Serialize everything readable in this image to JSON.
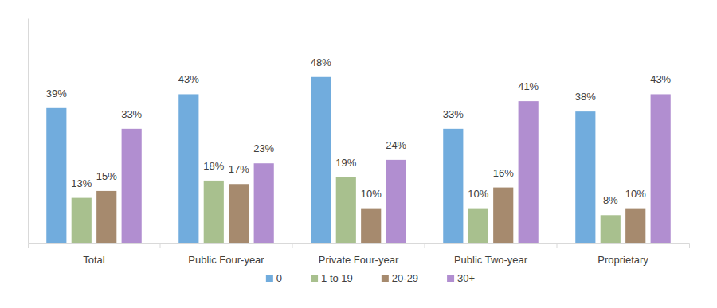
{
  "chart_data": {
    "type": "bar",
    "categories": [
      "Total",
      "Public Four-year",
      "Private Four-year",
      "Public Two-year",
      "Proprietary"
    ],
    "series": [
      {
        "name": "0",
        "color": "#71acdd",
        "values": [
          39,
          43,
          48,
          33,
          38
        ],
        "value_labels": [
          "39%",
          "43%",
          "48%",
          "33%",
          "38%"
        ]
      },
      {
        "name": "1 to 19",
        "color": "#a8c08e",
        "values": [
          13,
          18,
          19,
          10,
          8
        ],
        "value_labels": [
          "13%",
          "18%",
          "19%",
          "10%",
          "8%"
        ]
      },
      {
        "name": "20-29",
        "color": "#a68a6e",
        "values": [
          15,
          17,
          10,
          16,
          10
        ],
        "value_labels": [
          "15%",
          "17%",
          "10%",
          "16%",
          "10%"
        ]
      },
      {
        "name": "30+",
        "color": "#b18ed0",
        "values": [
          33,
          23,
          24,
          41,
          43
        ],
        "value_labels": [
          "33%",
          "23%",
          "24%",
          "41%",
          "43%"
        ]
      }
    ],
    "ylim": [
      0,
      65
    ],
    "grid": false,
    "legend": "bottom",
    "data_labels": true,
    "tick_labels": "x"
  }
}
